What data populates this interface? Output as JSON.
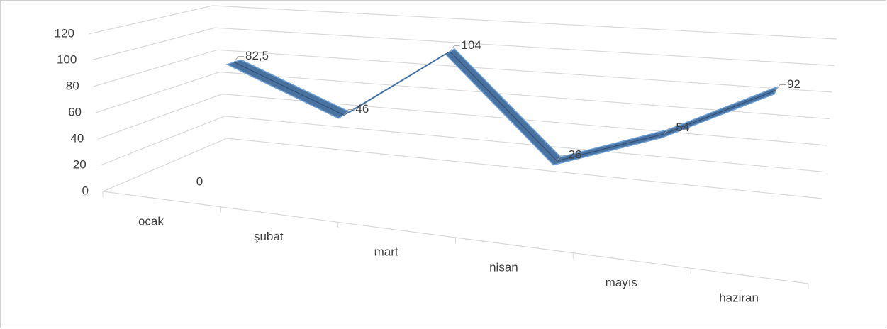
{
  "chart_data": {
    "type": "line3d",
    "categories": [
      "ocak",
      "şubat",
      "mart",
      "nisan",
      "mayıs",
      "haziran"
    ],
    "series": [
      {
        "values": [
          0,
          null,
          null,
          null,
          null,
          null
        ]
      },
      {
        "color": "#4a72a0",
        "values": [
          82.5,
          46,
          104,
          26,
          54,
          92
        ],
        "value_labels": [
          "82,5",
          "46",
          "104",
          "26",
          "54",
          "92"
        ]
      }
    ],
    "ylim": [
      0,
      120
    ],
    "yticks": [
      0,
      20,
      40,
      60,
      80,
      100,
      120
    ],
    "grid": true
  }
}
